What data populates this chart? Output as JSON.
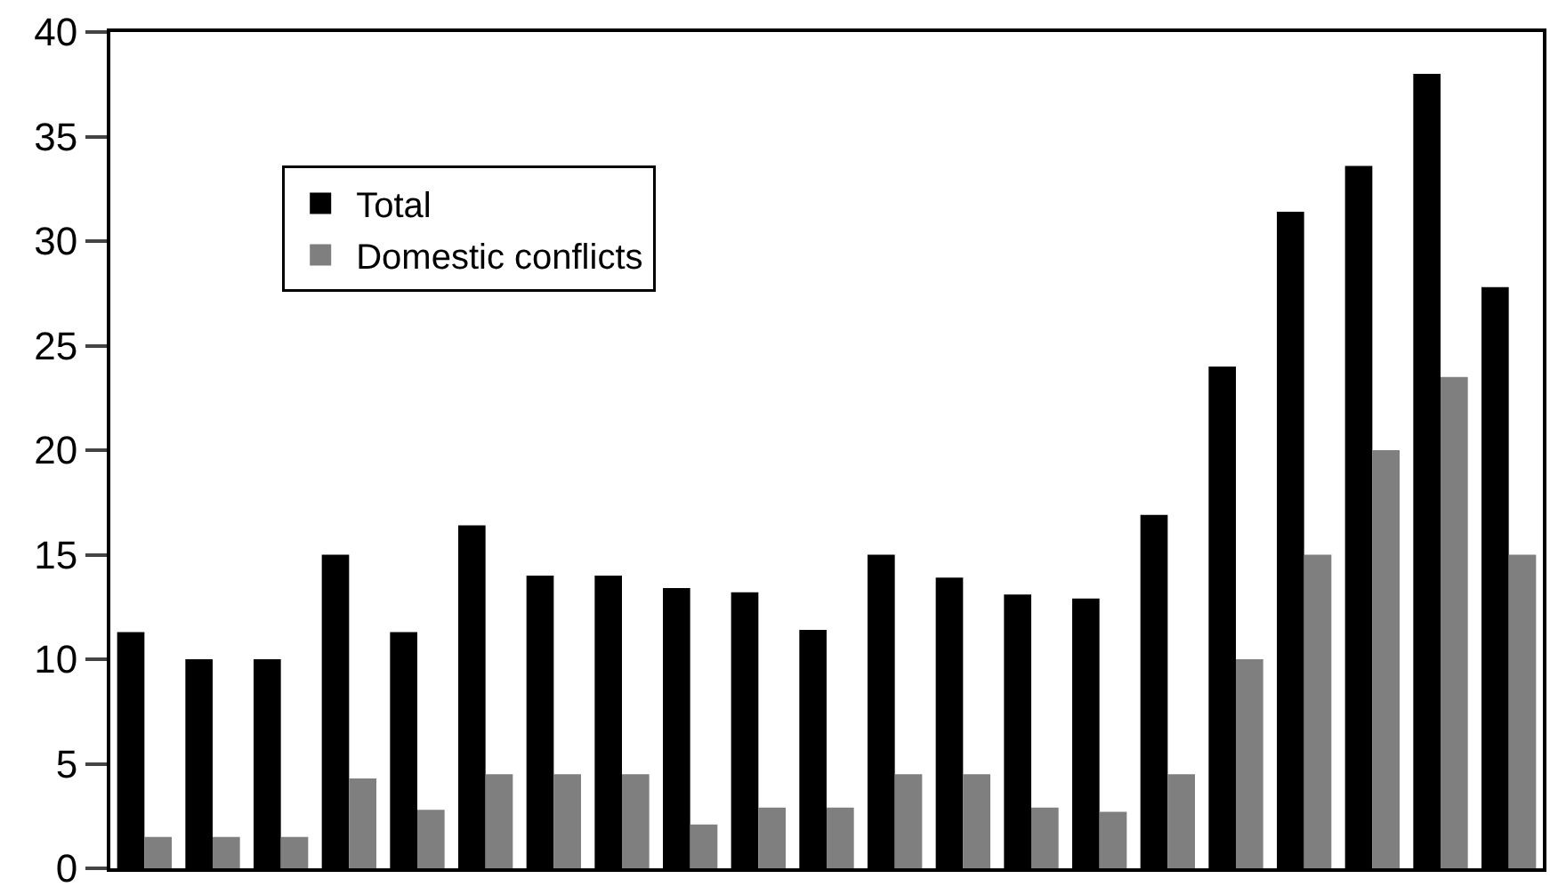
{
  "chart_data": {
    "type": "bar",
    "categories": [
      null,
      null,
      null,
      null,
      null,
      null,
      null,
      null,
      null,
      null,
      null,
      null,
      null,
      null,
      null,
      null,
      null,
      null,
      null,
      null,
      null
    ],
    "series": [
      {
        "name": "Total",
        "color": "#000000",
        "values": [
          11.3,
          10,
          10,
          15,
          11.3,
          16.4,
          14,
          14,
          13.4,
          13.2,
          11.4,
          15,
          13.9,
          13.1,
          12.9,
          16.9,
          24,
          31.4,
          33.6,
          38,
          27.8
        ]
      },
      {
        "name": "Domestic conflicts",
        "color": "#7f7f7f",
        "values": [
          1.5,
          1.5,
          1.5,
          4.3,
          2.8,
          4.5,
          4.5,
          4.5,
          2.1,
          2.9,
          2.9,
          4.5,
          4.5,
          2.9,
          2.7,
          4.5,
          10,
          15,
          20,
          23.5,
          15
        ]
      }
    ],
    "ylim": [
      0,
      40
    ],
    "yticks": [
      0,
      5,
      10,
      15,
      20,
      25,
      30,
      35,
      40
    ],
    "legend": "top left"
  }
}
